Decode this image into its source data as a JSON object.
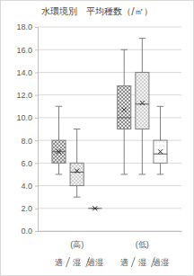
{
  "chart_data": {
    "type": "box",
    "title": "水環境別　平均種数（/㎡）",
    "categories": [
      "(高)",
      "(低)"
    ],
    "series": [
      {
        "name": "適",
        "color": "#8c8c8c",
        "min": [
          5.0,
          5.0
        ],
        "q1": [
          6.0,
          9.0
        ],
        "median": [
          7.0,
          10.0
        ],
        "q3": [
          8.0,
          12.8
        ],
        "max": [
          11.0,
          16.0
        ],
        "mean": [
          7.0,
          10.7
        ]
      },
      {
        "name": "湿",
        "color": "#a6a6a6",
        "min": [
          3.0,
          5.0
        ],
        "q1": [
          4.0,
          9.0
        ],
        "median": [
          5.2,
          11.2
        ],
        "q3": [
          6.0,
          14.0
        ],
        "max": [
          9.0,
          17.0
        ],
        "mean": [
          5.3,
          11.3
        ]
      },
      {
        "name": "過湿",
        "color": "#bfbfbf",
        "min": [
          2.0,
          5.0
        ],
        "q1": [
          2.0,
          6.0
        ],
        "median": [
          2.0,
          6.8
        ],
        "q3": [
          2.0,
          8.0
        ],
        "max": [
          2.0,
          11.0
        ],
        "mean": [
          2.0,
          7.0
        ]
      }
    ],
    "ylim": [
      0,
      18
    ],
    "yticks": [
      {
        "value": 0,
        "label": "0.0"
      },
      {
        "value": 2,
        "label": "2.0"
      },
      {
        "value": 4,
        "label": "4.0"
      },
      {
        "value": 6,
        "label": "6.0"
      },
      {
        "value": 8,
        "label": "8.0"
      },
      {
        "value": 10,
        "label": "10.0"
      },
      {
        "value": 12,
        "label": "12.0"
      },
      {
        "value": 14,
        "label": "14.0"
      },
      {
        "value": 16,
        "label": "16.0"
      },
      {
        "value": 18,
        "label": "18.0"
      }
    ],
    "grid": true
  }
}
